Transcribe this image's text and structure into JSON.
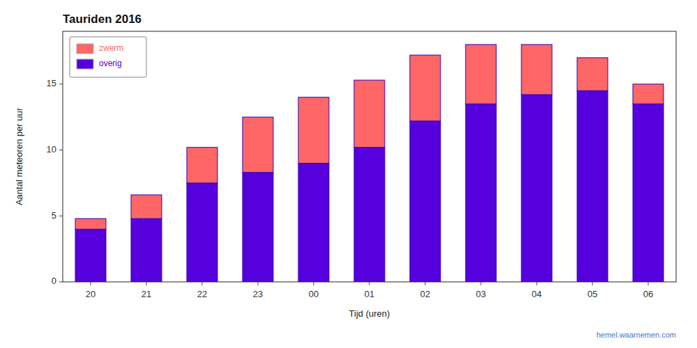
{
  "chart_data": {
    "type": "bar",
    "title": "Tauriden 2016",
    "x_label": "Tijd (uren)",
    "y_label": "Aantal meteoren per uur",
    "categories": [
      "20",
      "21",
      "22",
      "23",
      "00",
      "01",
      "02",
      "03",
      "04",
      "05",
      "06"
    ],
    "series": [
      {
        "name": "overig",
        "color": "#5500dd",
        "values": [
          4.0,
          4.8,
          7.5,
          8.3,
          9.0,
          10.2,
          12.2,
          13.5,
          14.2,
          14.5,
          13.5
        ]
      },
      {
        "name": "zwerm",
        "color": "#ff6666",
        "values": [
          0.8,
          1.8,
          2.7,
          4.2,
          5.0,
          5.1,
          5.0,
          4.5,
          3.8,
          2.5,
          1.5
        ]
      }
    ],
    "stacked": true,
    "ylim": [
      0,
      19
    ],
    "yticks": [
      0,
      5,
      10,
      15
    ],
    "grid": false,
    "legend": "upper left",
    "annotations": [
      "hemel.waarnemen.com"
    ]
  }
}
